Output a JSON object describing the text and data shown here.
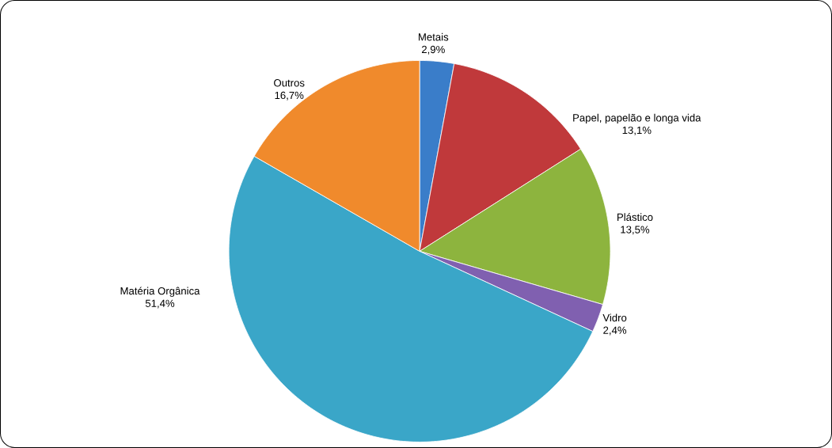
{
  "chart_data": {
    "type": "pie",
    "categories": [
      "Metais",
      "Papel, papelão e longa vida",
      "Plástico",
      "Vidro",
      "Matéria Orgânica",
      "Outros"
    ],
    "values": [
      2.9,
      13.1,
      13.5,
      2.4,
      51.4,
      16.7
    ],
    "value_labels": [
      "2,9%",
      "13,1%",
      "13,5%",
      "2,4%",
      "51,4%",
      "16,7%"
    ],
    "colors": [
      "#3a7dc9",
      "#c0393b",
      "#8db43e",
      "#8060b0",
      "#3aa6c8",
      "#f08a2c"
    ]
  }
}
